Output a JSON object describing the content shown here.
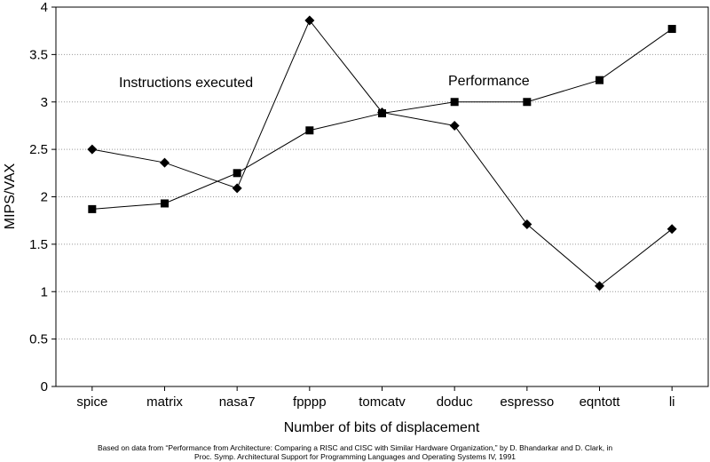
{
  "chart_data": {
    "type": "line",
    "categories": [
      "spice",
      "matrix",
      "nasa7",
      "fpppp",
      "tomcatv",
      "doduc",
      "espresso",
      "eqntott",
      "li"
    ],
    "series": [
      {
        "name": "Instructions executed",
        "marker": "diamond",
        "values": [
          2.5,
          2.36,
          2.09,
          3.86,
          2.89,
          2.75,
          1.71,
          1.06,
          1.66
        ]
      },
      {
        "name": "Performance",
        "marker": "square",
        "values": [
          1.87,
          1.93,
          2.25,
          2.7,
          2.88,
          3.0,
          3.0,
          3.23,
          3.77
        ]
      }
    ],
    "annotations": [
      "Instructions executed",
      "Performance"
    ],
    "xlabel": "Number of bits of displacement",
    "ylabel": "MIPS/VAX",
    "ylim": [
      0,
      4
    ],
    "yticks": [
      0,
      0.5,
      1,
      1.5,
      2,
      2.5,
      3,
      3.5,
      4
    ],
    "ytick_labels": [
      "0",
      "0.5",
      "1",
      "1.5",
      "2",
      "2.5",
      "3",
      "3.5",
      "4"
    ],
    "grid": "horizontal-dotted"
  },
  "caption": {
    "line1": "Based on data from “Performance from Architecture: Comparing a RISC and CISC with Similar Hardware Organization,” by D. Bhandarkar and D. Clark, in",
    "line2": "Proc. Symp. Architectural Support for Programming Languages and Operating Systems IV, 1991"
  },
  "colors": {
    "line": "#000000",
    "grid": "#999999"
  }
}
